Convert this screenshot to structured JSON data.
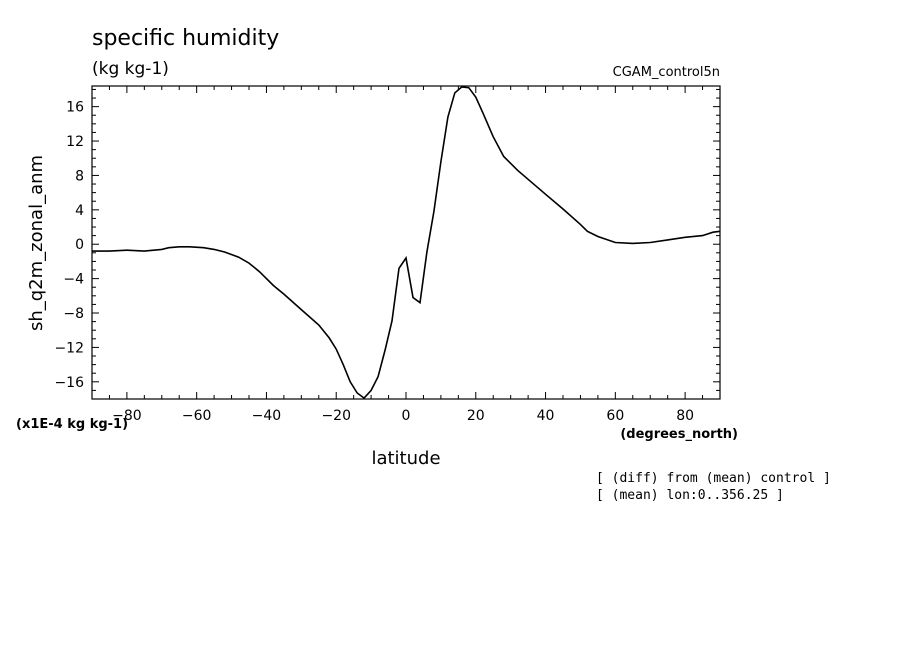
{
  "chart_data": {
    "type": "line",
    "title": "specific humidity",
    "subtitle": "(kg kg-1)",
    "run_label": "CGAM_control5n",
    "ylabel": "sh_q2m_zonal_anm",
    "xlabel": "latitude",
    "x_units": "(degrees_north)",
    "y_scale_label": "(x1E-4 kg kg-1)",
    "notes": [
      "[ (diff) from (mean) control ]",
      "[ (mean) lon:0..356.25 ]"
    ],
    "xlim": [
      -90,
      90
    ],
    "ylim": [
      -18,
      18.4
    ],
    "xticks": [
      -80,
      -60,
      -40,
      -20,
      0,
      20,
      40,
      60,
      80
    ],
    "yticks": [
      -16,
      -12,
      -8,
      -4,
      0,
      4,
      8,
      12,
      16
    ],
    "grid": false,
    "series": [
      {
        "color": "#000000",
        "x": [
          -90,
          -85,
          -80,
          -75,
          -70,
          -68,
          -65,
          -62,
          -58,
          -55,
          -52,
          -48,
          -45,
          -42,
          -38,
          -35,
          -30,
          -25,
          -22,
          -20,
          -18,
          -16,
          -14,
          -12,
          -10,
          -8,
          -6,
          -4,
          -2,
          0,
          2,
          4,
          6,
          8,
          10,
          12,
          14,
          16,
          18,
          20,
          22,
          25,
          28,
          32,
          36,
          40,
          45,
          50,
          52,
          55,
          60,
          65,
          70,
          75,
          80,
          85,
          88,
          90
        ],
        "y": [
          -0.8,
          -0.8,
          -0.7,
          -0.8,
          -0.6,
          -0.4,
          -0.3,
          -0.3,
          -0.4,
          -0.6,
          -0.9,
          -1.5,
          -2.2,
          -3.2,
          -4.8,
          -5.8,
          -7.6,
          -9.4,
          -10.9,
          -12.2,
          -14.0,
          -16.0,
          -17.3,
          -17.9,
          -17.0,
          -15.4,
          -12.3,
          -8.9,
          -2.8,
          -1.6,
          -6.2,
          -6.8,
          -0.9,
          3.8,
          9.6,
          14.8,
          17.6,
          18.3,
          18.2,
          17.1,
          15.3,
          12.5,
          10.2,
          8.6,
          7.2,
          5.8,
          4.1,
          2.3,
          1.5,
          0.9,
          0.2,
          0.1,
          0.2,
          0.5,
          0.8,
          1.0,
          1.4,
          1.5
        ]
      }
    ]
  }
}
